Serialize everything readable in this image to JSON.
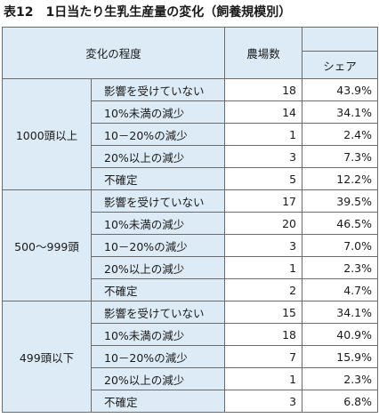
{
  "title": {
    "number": "表12",
    "text": "1日当たり生乳生産量の変化（飼養規模別）"
  },
  "headers": {
    "change_degree": "変化の程度",
    "farms": "農場数",
    "share": "シェア"
  },
  "groups": [
    {
      "label": "1000頭以上",
      "rows": [
        {
          "category": "影響を受けていない",
          "farms": "18",
          "share": "43.9%"
        },
        {
          "category": "10%未満の減少",
          "farms": "14",
          "share": "34.1%"
        },
        {
          "category": "10－20%の減少",
          "farms": "1",
          "share": "2.4%"
        },
        {
          "category": "20%以上の減少",
          "farms": "3",
          "share": "7.3%"
        },
        {
          "category": "不確定",
          "farms": "5",
          "share": "12.2%"
        }
      ]
    },
    {
      "label": "500～999頭",
      "rows": [
        {
          "category": "影響を受けていない",
          "farms": "17",
          "share": "39.5%"
        },
        {
          "category": "10%未満の減少",
          "farms": "20",
          "share": "46.5%"
        },
        {
          "category": "10－20%の減少",
          "farms": "3",
          "share": "7.0%"
        },
        {
          "category": "20%以上の減少",
          "farms": "1",
          "share": "2.3%"
        },
        {
          "category": "不確定",
          "farms": "2",
          "share": "4.7%"
        }
      ]
    },
    {
      "label": "499頭以下",
      "rows": [
        {
          "category": "影響を受けていない",
          "farms": "15",
          "share": "34.1%"
        },
        {
          "category": "10%未満の減少",
          "farms": "18",
          "share": "40.9%"
        },
        {
          "category": "10－20%の減少",
          "farms": "7",
          "share": "15.9%"
        },
        {
          "category": "20%以上の減少",
          "farms": "1",
          "share": "2.3%"
        },
        {
          "category": "不確定",
          "farms": "3",
          "share": "6.8%"
        }
      ]
    }
  ]
}
